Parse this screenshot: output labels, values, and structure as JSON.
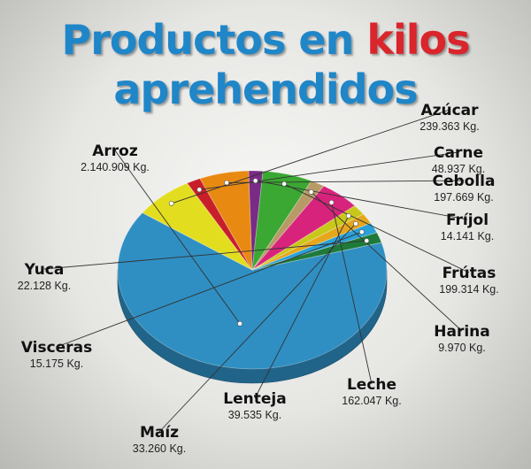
{
  "title": {
    "part1": "Productos en",
    "part2": "kilos",
    "line2": "aprehendidos",
    "color_main": "#1f86c8",
    "color_accent": "#d9252b"
  },
  "chart_data": {
    "type": "pie",
    "title": "Productos en kilos aprehendidos",
    "unit": "Kg.",
    "slices": [
      {
        "name": "Arroz",
        "value_text": "2.140.909 Kg.",
        "value": 2140909,
        "color": "#2f8fc3"
      },
      {
        "name": "Azúcar",
        "value_text": "239.363 Kg.",
        "value": 239363,
        "color": "#e3dd1f"
      },
      {
        "name": "Carne",
        "value_text": "48.937 Kg.",
        "value": 48937,
        "color": "#c81e2a"
      },
      {
        "name": "Cebolla",
        "value_text": "197.669 Kg.",
        "value": 197669,
        "color": "#e88a12"
      },
      {
        "name": "Fríjol",
        "value_text": "14.141 Kg.",
        "value": 14141,
        "color": "#7a2b86"
      },
      {
        "name": "Frútas",
        "value_text": "199.314 Kg.",
        "value": 199314,
        "color": "#3aa832"
      },
      {
        "name": "Harina",
        "value_text": "9.970 Kg.",
        "value": 9970,
        "color": "#b89a66"
      },
      {
        "name": "Leche",
        "value_text": "162.047 Kg.",
        "value": 162047,
        "color": "#d8237c"
      },
      {
        "name": "Lenteja",
        "value_text": "39.535 Kg.",
        "value": 39535,
        "color": "#c8c81a"
      },
      {
        "name": "Maíz",
        "value_text": "33.260 Kg.",
        "value": 33260,
        "color": "#e6a61c"
      },
      {
        "name": "Visceras",
        "value_text": "15.175 Kg.",
        "value": 15175,
        "color": "#2aa0d8"
      },
      {
        "name": "Yuca",
        "value_text": "22.128 Kg.",
        "value": 22128,
        "color": "#1e7a3a"
      }
    ]
  }
}
